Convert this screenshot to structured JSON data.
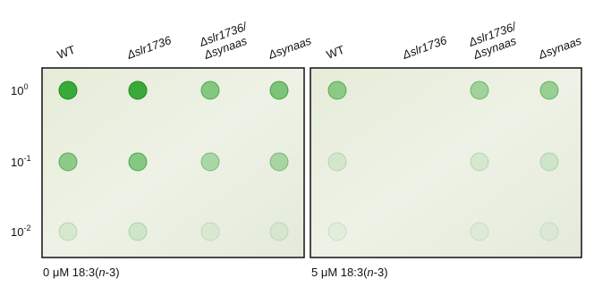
{
  "rows": [
    {
      "base": "10",
      "exp": "0"
    },
    {
      "base": "10",
      "exp": "-1"
    },
    {
      "base": "10",
      "exp": "-2"
    }
  ],
  "panels": [
    {
      "columns": [
        [
          "WT"
        ],
        [
          "Δslr1736"
        ],
        [
          "Δslr1736/",
          "Δsynaas"
        ],
        [
          "Δsynaas"
        ]
      ],
      "caption": [
        "0 μM 18:3(",
        "n",
        "-3)"
      ]
    },
    {
      "columns": [
        [
          "WT"
        ],
        [
          "Δslr1736"
        ],
        [
          "Δslr1736/",
          "Δsynaas"
        ],
        [
          "Δsynaas"
        ]
      ],
      "caption": [
        "5 μM 18:3(",
        "n",
        "-3)"
      ]
    }
  ]
}
